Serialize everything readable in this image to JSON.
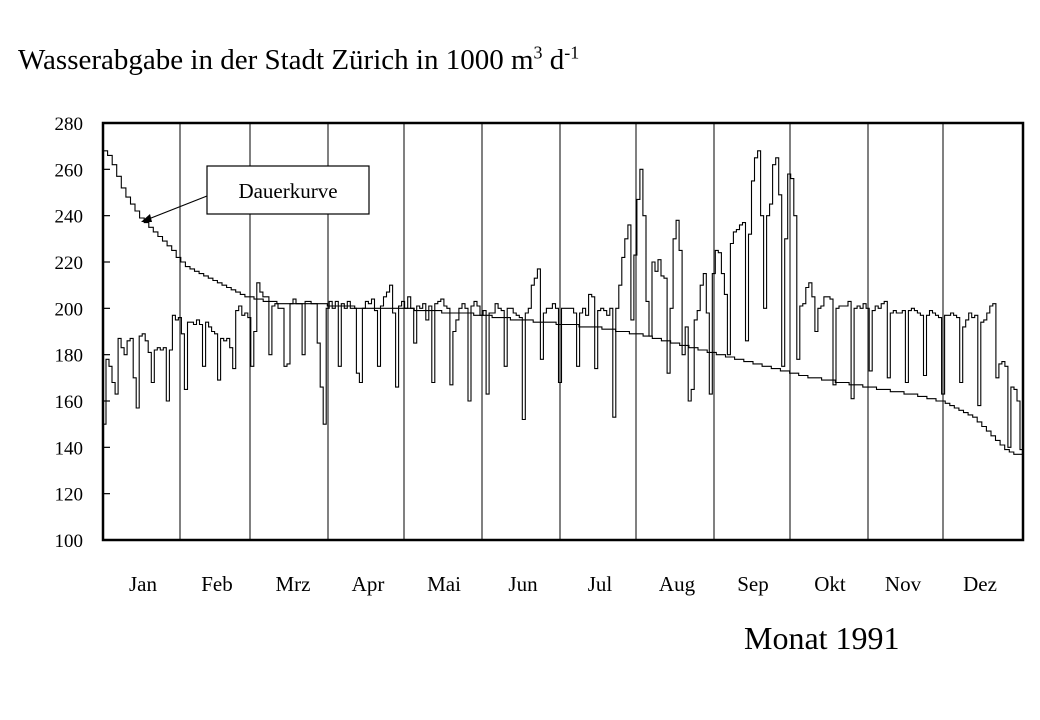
{
  "chart_data": {
    "type": "line",
    "title": {
      "main": "Wasserabgabe in der Stadt Zürich in 1000 m",
      "sup1": "3",
      "mid": " d",
      "sup2": "-1"
    },
    "xlabel": "Monat 1991",
    "ylabel": "",
    "ylim": [
      100,
      280
    ],
    "yticks": [
      100,
      120,
      140,
      160,
      180,
      200,
      220,
      240,
      260,
      280
    ],
    "months": [
      "Jan",
      "Feb",
      "Mrz",
      "Apr",
      "Mai",
      "Jun",
      "Jul",
      "Aug",
      "Sep",
      "Okt",
      "Nov",
      "Dez"
    ],
    "grid": "vertical month separators",
    "annotation": "Dauerkurve",
    "series": [
      {
        "name": "",
        "description_key": "daily",
        "values": [
          150,
          178,
          175,
          168,
          163,
          187,
          183,
          180,
          186,
          187,
          170,
          157,
          188,
          189,
          186,
          181,
          168,
          182,
          183,
          182,
          183,
          160,
          182,
          197,
          195,
          196,
          189,
          165,
          194,
          194,
          193,
          195,
          193,
          175,
          194,
          192,
          190,
          189,
          169,
          187,
          186,
          187,
          183,
          174,
          199,
          201,
          197,
          198,
          196,
          175,
          190,
          211,
          207,
          205,
          205,
          180,
          201,
          202,
          200,
          200,
          175,
          176,
          202,
          204,
          202,
          202,
          180,
          203,
          203,
          202,
          202,
          185,
          166,
          150,
          200,
          203,
          200,
          203,
          175,
          202,
          200,
          203,
          200,
          200,
          172,
          168,
          200,
          203,
          202,
          204,
          199,
          175,
          201,
          205,
          207,
          210,
          198,
          166,
          201,
          203,
          200,
          205,
          200,
          185,
          201,
          200,
          202,
          195,
          201,
          168,
          202,
          203,
          204,
          201,
          200,
          167,
          190,
          195,
          200,
          202,
          200,
          160,
          201,
          203,
          201,
          197,
          199,
          163,
          198,
          198,
          202,
          200,
          199,
          175,
          200,
          200,
          198,
          197,
          196,
          152,
          198,
          200,
          210,
          213,
          217,
          178,
          198,
          200,
          200,
          202,
          200,
          168,
          200,
          200,
          200,
          200,
          198,
          175,
          198,
          200,
          197,
          206,
          205,
          174,
          199,
          200,
          199,
          197,
          200,
          153,
          200,
          210,
          222,
          230,
          236,
          195,
          223,
          247,
          260,
          240,
          203,
          188,
          220,
          216,
          221,
          214,
          213,
          172,
          200,
          230,
          238,
          225,
          180,
          192,
          160,
          165,
          195,
          199,
          210,
          215,
          198,
          163,
          215,
          225,
          224,
          215,
          206,
          180,
          228,
          233,
          234,
          236,
          237,
          186,
          232,
          255,
          265,
          268,
          240,
          200,
          240,
          245,
          262,
          265,
          249,
          175,
          230,
          258,
          256,
          240,
          178,
          201,
          202,
          209,
          211,
          205,
          190,
          200,
          201,
          205,
          205,
          204,
          167,
          200,
          201,
          201,
          201,
          203,
          161,
          200,
          201,
          200,
          202,
          200,
          173,
          199,
          201,
          200,
          202,
          203,
          170,
          198,
          199,
          198,
          198,
          199,
          168,
          199,
          200,
          199,
          198,
          197,
          171,
          197,
          199,
          198,
          197,
          196,
          163,
          197,
          197,
          198,
          197,
          196,
          168,
          192,
          195,
          198,
          196,
          197,
          158,
          194,
          195,
          198,
          201,
          202,
          170,
          176,
          177,
          175,
          140,
          166,
          165,
          160,
          139
        ]
      },
      {
        "name": "Dauerkurve",
        "values": [
          268,
          266,
          262,
          257,
          252,
          248,
          245,
          242,
          239,
          237,
          235,
          233,
          231,
          229,
          227,
          225,
          222,
          220,
          218,
          217,
          216,
          215,
          214,
          213,
          212,
          211,
          210,
          209,
          208,
          207,
          206,
          205,
          205,
          204,
          204,
          203,
          203,
          203,
          202,
          202,
          202,
          202,
          202,
          202,
          202,
          202,
          202,
          202,
          202,
          201,
          201,
          201,
          201,
          201,
          201,
          200,
          200,
          200,
          200,
          200,
          200,
          200,
          200,
          200,
          200,
          200,
          200,
          200,
          199,
          199,
          199,
          199,
          199,
          199,
          198,
          198,
          198,
          198,
          198,
          198,
          198,
          197,
          197,
          197,
          197,
          196,
          196,
          196,
          196,
          195,
          195,
          195,
          195,
          195,
          194,
          194,
          194,
          194,
          194,
          193,
          193,
          193,
          193,
          193,
          192,
          192,
          192,
          192,
          192,
          191,
          191,
          191,
          190,
          190,
          190,
          189,
          189,
          189,
          188,
          188,
          187,
          187,
          186,
          186,
          185,
          185,
          184,
          184,
          183,
          183,
          182,
          182,
          181,
          181,
          180,
          180,
          179,
          179,
          178,
          178,
          177,
          177,
          176,
          176,
          175,
          175,
          174,
          174,
          173,
          173,
          172,
          172,
          171,
          171,
          170,
          170,
          170,
          169,
          169,
          169,
          168,
          168,
          168,
          167,
          167,
          167,
          166,
          166,
          166,
          165,
          165,
          165,
          164,
          164,
          164,
          163,
          163,
          163,
          162,
          162,
          161,
          161,
          160,
          160,
          159,
          158,
          157,
          156,
          155,
          154,
          153,
          151,
          149,
          147,
          145,
          143,
          141,
          139,
          138,
          137,
          137
        ]
      }
    ]
  }
}
